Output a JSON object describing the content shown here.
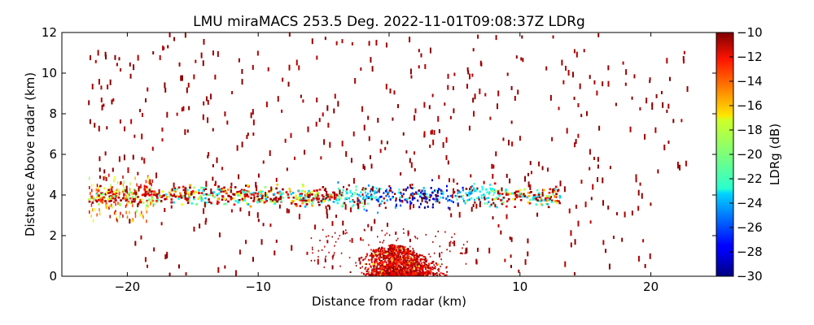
{
  "chart_data": {
    "type": "scatter",
    "title": "LMU miraMACS 253.5 Deg. 2022-11-01T09:08:37Z  LDRg",
    "xlabel": "Distance from radar (km)",
    "ylabel": "Distance Above radar  (km)",
    "xlim": [
      -25.0,
      25.0
    ],
    "ylim": [
      0,
      12
    ],
    "xticks": [
      -20,
      -10,
      0,
      10,
      20
    ],
    "xtick_labels": [
      "−20",
      "−10",
      "0",
      "10",
      "20"
    ],
    "yticks": [
      0,
      2,
      4,
      6,
      8,
      10,
      12
    ],
    "ytick_labels": [
      "0",
      "2",
      "4",
      "6",
      "8",
      "10",
      "12"
    ],
    "grid": false,
    "colorbar": {
      "label": "LDRg (dB)",
      "range": [
        -30,
        -10
      ],
      "ticks": [
        -30,
        -28,
        -26,
        -24,
        -22,
        -20,
        -18,
        -16,
        -14,
        -12,
        -10
      ],
      "tick_labels": [
        "−30",
        "−28",
        "−26",
        "−24",
        "−22",
        "−20",
        "−18",
        "−16",
        "−14",
        "−12",
        "−10"
      ],
      "colormap": "jet"
    },
    "features": [
      {
        "region": "near-ground clutter",
        "x_range": [
          -5,
          5
        ],
        "y_range": [
          0,
          1.5
        ],
        "ldr_range": [
          -14,
          -10
        ]
      },
      {
        "region": "melting/cloud layer",
        "x_range": [
          -23,
          13
        ],
        "y_range": [
          2.7,
          4.9
        ],
        "ldr_range": [
          -30,
          -10
        ]
      },
      {
        "region": "scattered sidelobe arcs",
        "x_range": [
          -23,
          23
        ],
        "y_range": [
          0,
          12
        ],
        "ldr_range": [
          -12,
          -10
        ]
      }
    ]
  }
}
